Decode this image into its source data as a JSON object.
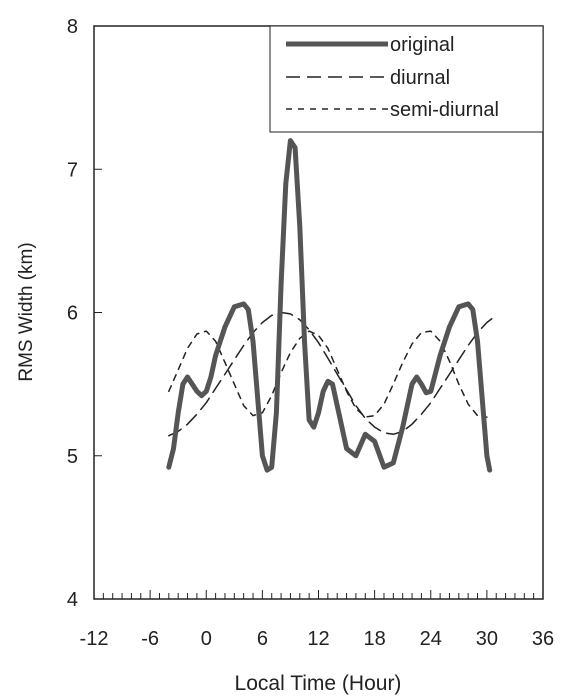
{
  "chart_data": {
    "type": "line",
    "title": "",
    "xlabel": "Local Time (Hour)",
    "ylabel": "RMS Width (km)",
    "xlim": [
      -12,
      36
    ],
    "ylim": [
      4,
      8
    ],
    "xticks": [
      -12,
      -6,
      0,
      6,
      12,
      18,
      24,
      30,
      36
    ],
    "xtick_labels": [
      "-12",
      "-6",
      "0",
      "6",
      "12",
      "18",
      "24",
      "30",
      "36"
    ],
    "yticks": [
      4,
      5,
      6,
      7,
      8
    ],
    "ytick_labels": [
      "4",
      "5",
      "6",
      "7",
      "8"
    ],
    "x_minor_tick_step": 1,
    "grid": false,
    "legend_position": "top-right",
    "series": [
      {
        "name": "original",
        "style": "solid-thick",
        "color": "#555555",
        "points": [
          [
            -4,
            4.92
          ],
          [
            -3.5,
            5.05
          ],
          [
            -3,
            5.3
          ],
          [
            -2.5,
            5.5
          ],
          [
            -2,
            5.55
          ],
          [
            -1.5,
            5.5
          ],
          [
            -1,
            5.45
          ],
          [
            -0.5,
            5.42
          ],
          [
            0,
            5.45
          ],
          [
            0.5,
            5.55
          ],
          [
            1,
            5.7
          ],
          [
            2,
            5.9
          ],
          [
            3,
            6.04
          ],
          [
            4,
            6.06
          ],
          [
            4.5,
            6.02
          ],
          [
            5,
            5.8
          ],
          [
            5.5,
            5.4
          ],
          [
            6,
            5.0
          ],
          [
            6.5,
            4.9
          ],
          [
            7,
            4.92
          ],
          [
            7.5,
            5.3
          ],
          [
            8,
            6.2
          ],
          [
            8.5,
            6.9
          ],
          [
            9,
            7.2
          ],
          [
            9.5,
            7.15
          ],
          [
            10,
            6.6
          ],
          [
            10.5,
            5.8
          ],
          [
            11,
            5.25
          ],
          [
            11.5,
            5.2
          ],
          [
            12,
            5.3
          ],
          [
            12.5,
            5.45
          ],
          [
            13,
            5.52
          ],
          [
            13.5,
            5.5
          ],
          [
            14,
            5.35
          ],
          [
            15,
            5.05
          ],
          [
            16,
            5.0
          ],
          [
            17,
            5.15
          ],
          [
            18,
            5.1
          ],
          [
            19,
            4.92
          ],
          [
            20,
            4.95
          ],
          [
            21,
            5.2
          ],
          [
            22,
            5.5
          ],
          [
            22.5,
            5.55
          ],
          [
            23,
            5.5
          ],
          [
            23.5,
            5.44
          ],
          [
            24,
            5.45
          ],
          [
            25,
            5.7
          ],
          [
            26,
            5.9
          ],
          [
            27,
            6.04
          ],
          [
            28,
            6.06
          ],
          [
            28.5,
            6.02
          ],
          [
            29,
            5.8
          ],
          [
            29.5,
            5.4
          ],
          [
            30,
            5.0
          ],
          [
            30.3,
            4.9
          ]
        ]
      },
      {
        "name": "diurnal",
        "style": "dashed",
        "color": "#222222",
        "points": [
          [
            -4,
            5.14
          ],
          [
            -3,
            5.17
          ],
          [
            -2,
            5.22
          ],
          [
            -1,
            5.29
          ],
          [
            0,
            5.37
          ],
          [
            1,
            5.47
          ],
          [
            2,
            5.57
          ],
          [
            3,
            5.67
          ],
          [
            4,
            5.77
          ],
          [
            5,
            5.86
          ],
          [
            6,
            5.93
          ],
          [
            7,
            5.98
          ],
          [
            8,
            6.0
          ],
          [
            9,
            5.99
          ],
          [
            10,
            5.95
          ],
          [
            11,
            5.88
          ],
          [
            12,
            5.79
          ],
          [
            13,
            5.68
          ],
          [
            14,
            5.57
          ],
          [
            15,
            5.46
          ],
          [
            16,
            5.35
          ],
          [
            17,
            5.26
          ],
          [
            18,
            5.2
          ],
          [
            19,
            5.16
          ],
          [
            20,
            5.15
          ],
          [
            21,
            5.17
          ],
          [
            22,
            5.22
          ],
          [
            23,
            5.29
          ],
          [
            24,
            5.37
          ],
          [
            25,
            5.47
          ],
          [
            26,
            5.57
          ],
          [
            27,
            5.67
          ],
          [
            28,
            5.77
          ],
          [
            29,
            5.86
          ],
          [
            30,
            5.93
          ],
          [
            31,
            5.98
          ]
        ]
      },
      {
        "name": "semi-diurnal",
        "style": "dotted",
        "color": "#222222",
        "points": [
          [
            -4,
            5.45
          ],
          [
            -3,
            5.6
          ],
          [
            -2,
            5.75
          ],
          [
            -1,
            5.85
          ],
          [
            0,
            5.87
          ],
          [
            1,
            5.8
          ],
          [
            2,
            5.65
          ],
          [
            3,
            5.5
          ],
          [
            4,
            5.35
          ],
          [
            5,
            5.28
          ],
          [
            6,
            5.3
          ],
          [
            7,
            5.42
          ],
          [
            8,
            5.58
          ],
          [
            9,
            5.72
          ],
          [
            10,
            5.82
          ],
          [
            11,
            5.87
          ],
          [
            12,
            5.84
          ],
          [
            13,
            5.75
          ],
          [
            14,
            5.6
          ],
          [
            15,
            5.45
          ],
          [
            16,
            5.33
          ],
          [
            17,
            5.27
          ],
          [
            18,
            5.28
          ],
          [
            19,
            5.36
          ],
          [
            20,
            5.5
          ],
          [
            21,
            5.65
          ],
          [
            22,
            5.78
          ],
          [
            23,
            5.86
          ],
          [
            24,
            5.87
          ],
          [
            25,
            5.8
          ],
          [
            26,
            5.66
          ],
          [
            27,
            5.5
          ],
          [
            28,
            5.36
          ],
          [
            29,
            5.28
          ],
          [
            30,
            5.27
          ]
        ]
      }
    ]
  }
}
